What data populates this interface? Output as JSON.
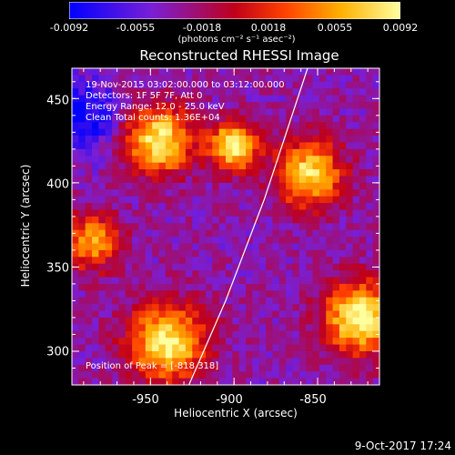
{
  "chart_data": {
    "type": "heatmap",
    "title": "Reconstructed RHESSI Image",
    "xlabel": "Heliocentric X (arcsec)",
    "ylabel": "Heliocentric Y (arcsec)",
    "xlim": [
      -997,
      -813
    ],
    "ylim": [
      280,
      468
    ],
    "x_ticks": [
      -950,
      -900,
      -850
    ],
    "x_tick_labels": [
      "-950",
      "-900",
      "-850"
    ],
    "y_ticks": [
      300,
      350,
      400,
      450
    ],
    "y_tick_labels": [
      "300",
      "350",
      "400",
      "450"
    ],
    "colorbar": {
      "min": -0.0092,
      "max": 0.0092,
      "tick_labels": [
        "-0.0092",
        "-0.0055",
        "-0.0018",
        "0.0018",
        "0.0055",
        "0.0092"
      ],
      "units": "(photons cm⁻² s⁻¹ asec⁻²)",
      "colors": [
        "#0000ff",
        "#7a1fd6",
        "#c0001a",
        "#ff4000",
        "#ffb000",
        "#ffffa0"
      ]
    },
    "annotations": [
      "19-Nov-2015 03:02:00.000 to 03:12:00.000",
      "Detectors: 1F 5F 7F, Att 0",
      "Energy Range: 12.0 - 25.0 keV",
      "Clean     Total counts: 1.36E+04"
    ],
    "peak_label": "Position of Peak = [-818,318]",
    "limb_line": [
      [
        -927,
        280
      ],
      [
        -905,
        330
      ],
      [
        -882,
        390
      ],
      [
        -856,
        468
      ]
    ],
    "sources": [
      {
        "x": -945,
        "y": 425,
        "sigma": 14,
        "amp": 0.0085
      },
      {
        "x": -900,
        "y": 422,
        "sigma": 10,
        "amp": 0.0092
      },
      {
        "x": -855,
        "y": 405,
        "sigma": 14,
        "amp": 0.0075
      },
      {
        "x": -825,
        "y": 320,
        "sigma": 15,
        "amp": 0.0092
      },
      {
        "x": -940,
        "y": 305,
        "sigma": 16,
        "amp": 0.0085
      },
      {
        "x": -985,
        "y": 365,
        "sigma": 12,
        "amp": 0.005
      }
    ]
  },
  "footer": {
    "date": "9-Oct-2017 17:24"
  }
}
